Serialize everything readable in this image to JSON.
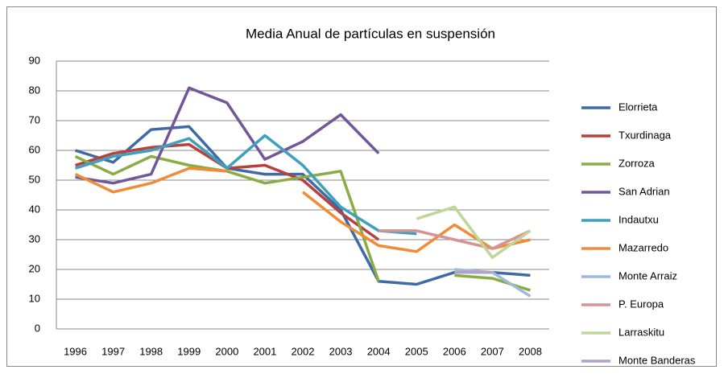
{
  "chart_data": {
    "type": "line",
    "title": "Media Anual de partículas en suspensión",
    "categories": [
      "1996",
      "1997",
      "1998",
      "1999",
      "2000",
      "2001",
      "2002",
      "2003",
      "2004",
      "2005",
      "2006",
      "2007",
      "2008"
    ],
    "ylim": [
      0,
      90
    ],
    "yticks": [
      0,
      10,
      20,
      30,
      40,
      50,
      60,
      70,
      80,
      90
    ],
    "grid": true,
    "legend": "right",
    "series": [
      {
        "name": "Elorrieta",
        "color": "#3f6aa6",
        "values": [
          60,
          56,
          67,
          68,
          54,
          52,
          52,
          40,
          16,
          15,
          19,
          19,
          18
        ]
      },
      {
        "name": "Txurdinaga",
        "color": "#b8403d",
        "values": [
          55,
          59,
          61,
          62,
          54,
          55,
          50,
          39,
          30,
          null,
          null,
          null,
          null
        ]
      },
      {
        "name": "Zorroza",
        "color": "#8aac46",
        "values": [
          58,
          52,
          58,
          55,
          53,
          49,
          51,
          53,
          16,
          null,
          18,
          17,
          13
        ]
      },
      {
        "name": "San Adrian",
        "color": "#71569a",
        "values": [
          51,
          49,
          52,
          81,
          76,
          57,
          63,
          72,
          59,
          null,
          null,
          null,
          null
        ]
      },
      {
        "name": "Indautxu",
        "color": "#3fa0bd",
        "values": [
          54,
          58,
          60,
          64,
          54,
          65,
          55,
          41,
          33,
          32,
          null,
          null,
          null
        ]
      },
      {
        "name": "Mazarredo",
        "color": "#f08c38",
        "values": [
          52,
          46,
          49,
          54,
          53,
          null,
          46,
          36,
          28,
          26,
          35,
          27,
          30
        ]
      },
      {
        "name": "Monte Arraiz",
        "color": "#9fb8dc",
        "values": [
          null,
          null,
          null,
          null,
          null,
          null,
          null,
          null,
          null,
          null,
          20,
          19,
          11
        ]
      },
      {
        "name": "P. Europa",
        "color": "#d69391",
        "values": [
          null,
          null,
          null,
          null,
          null,
          null,
          null,
          null,
          33,
          33,
          30,
          27,
          33
        ]
      },
      {
        "name": "Larraskitu",
        "color": "#c0d698",
        "values": [
          null,
          null,
          null,
          null,
          null,
          null,
          null,
          null,
          null,
          37,
          41,
          24,
          33
        ]
      },
      {
        "name": "Monte Banderas",
        "color": "#b1a0c8",
        "values": [
          null,
          null,
          null,
          null,
          null,
          null,
          null,
          null,
          null,
          null,
          19,
          19,
          null
        ]
      }
    ]
  }
}
